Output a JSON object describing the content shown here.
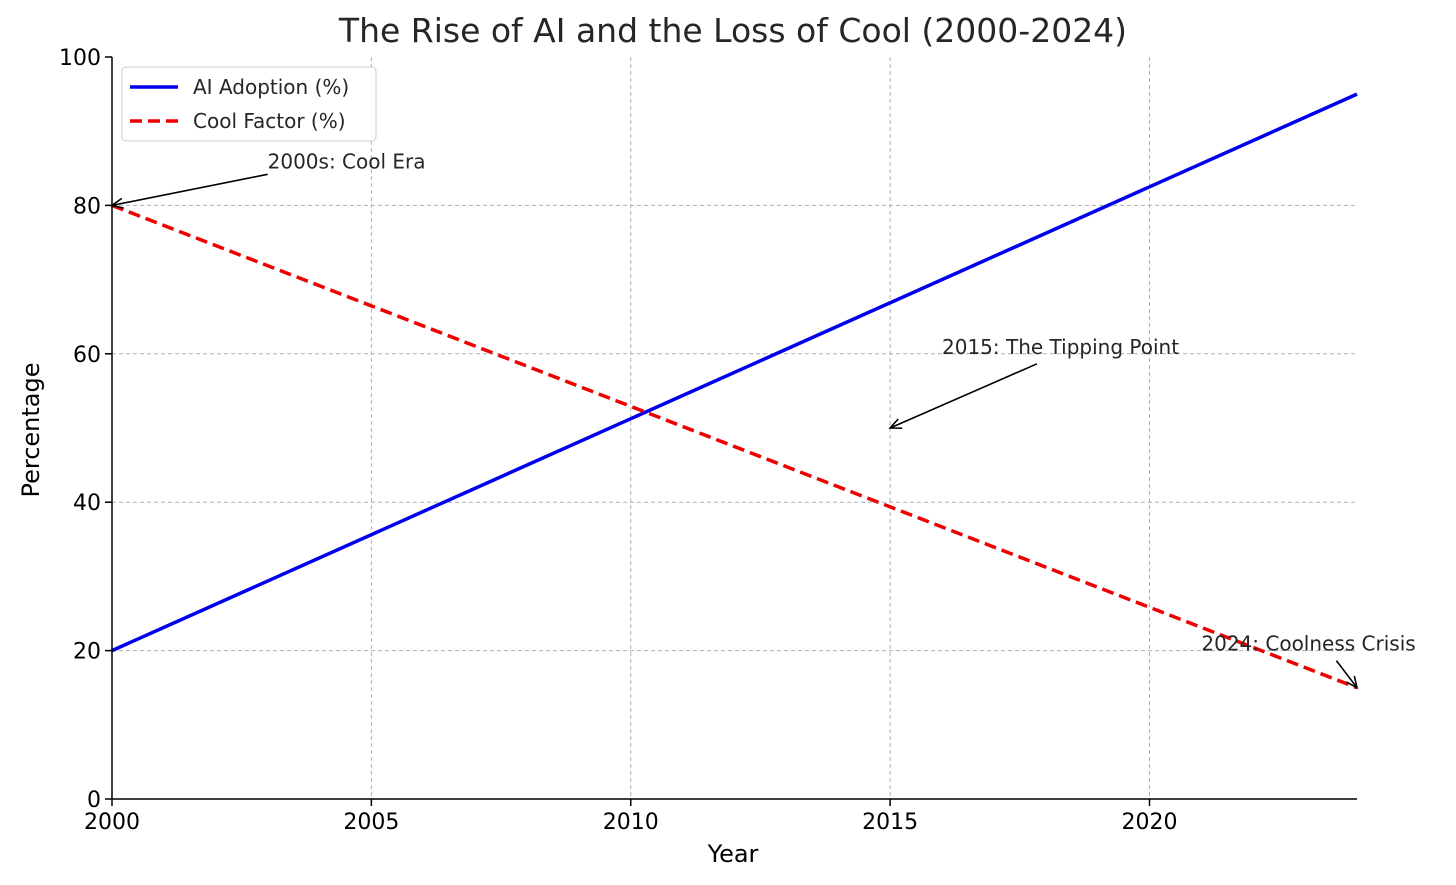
{
  "chart_data": {
    "type": "line",
    "title": "The Rise of AI and the Loss of Cool (2000-2024)",
    "xlabel": "Year",
    "ylabel": "Percentage",
    "xlim": [
      2000,
      2024
    ],
    "ylim": [
      0,
      100
    ],
    "x_ticks": [
      2000,
      2005,
      2010,
      2015,
      2020
    ],
    "y_ticks": [
      0,
      20,
      40,
      60,
      80,
      100
    ],
    "grid": true,
    "legend_position": "top-left",
    "series": [
      {
        "name": "AI Adoption (%)",
        "color": "#0000ee",
        "style": "solid",
        "x": [
          2000,
          2024
        ],
        "values": [
          20,
          95
        ]
      },
      {
        "name": "Cool Factor (%)",
        "color": "#ee0000",
        "style": "dashed",
        "x": [
          2000,
          2024
        ],
        "values": [
          80,
          15
        ]
      }
    ],
    "annotations": [
      {
        "text": "2000s: Cool Era",
        "point": [
          2000,
          80
        ],
        "text_at": [
          2003,
          85
        ]
      },
      {
        "text": "2015: The Tipping Point",
        "point": [
          2015,
          50
        ],
        "text_at": [
          2016,
          60
        ]
      },
      {
        "text": "2024: Coolness Crisis",
        "point": [
          2024,
          15
        ],
        "text_at": [
          2021,
          20
        ]
      }
    ]
  }
}
